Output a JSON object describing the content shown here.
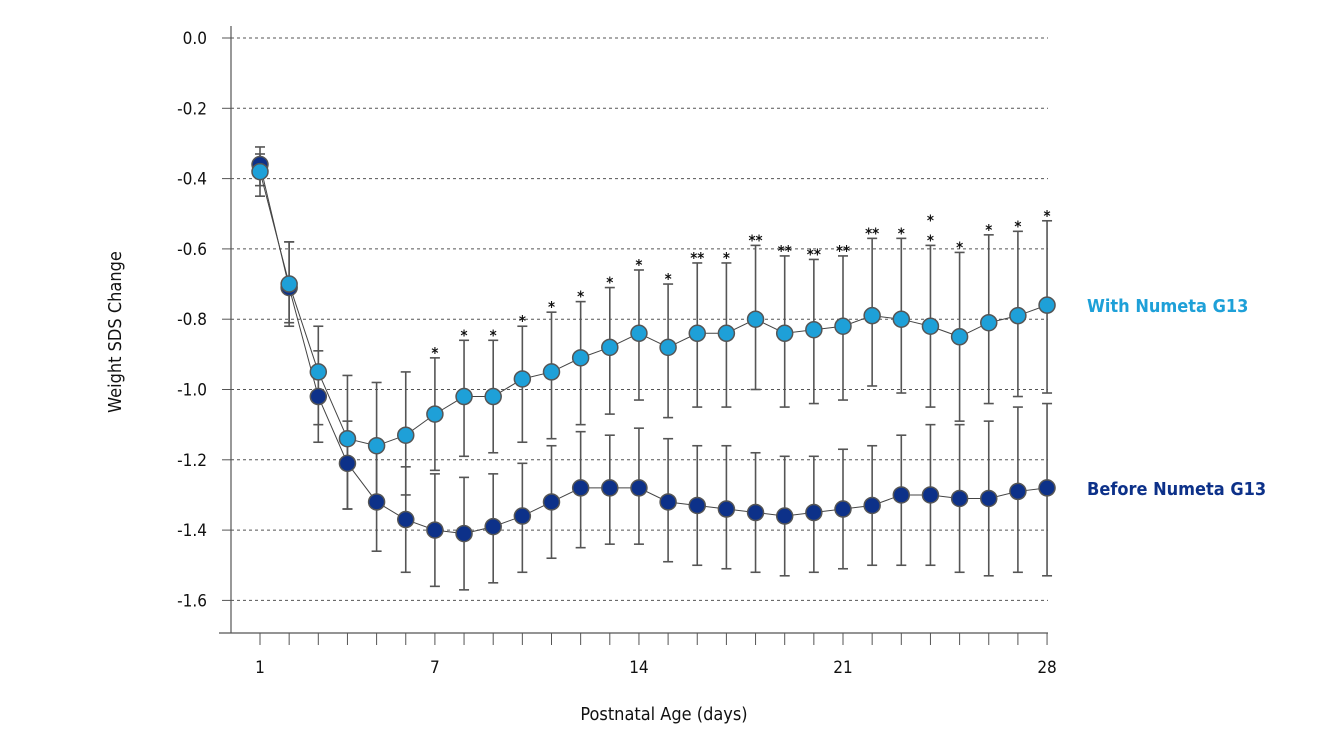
{
  "chart_data": {
    "type": "line",
    "xlabel": "Postnatal Age (days)",
    "ylabel": "Weight SDS Change",
    "x_ticks": [
      "1",
      "7",
      "14",
      "21",
      "28"
    ],
    "y_ticks": [
      "0.0",
      "-0.2",
      "-0.4",
      "-0.6",
      "-0.8",
      "-1.0",
      "-1.2",
      "-1.4",
      "-1.6"
    ],
    "ylim": [
      -1.6,
      0.0
    ],
    "xlim": [
      1,
      28
    ],
    "grid": "horizontal dashed",
    "x": [
      1,
      2,
      3,
      4,
      5,
      6,
      7,
      8,
      9,
      10,
      11,
      12,
      13,
      14,
      15,
      16,
      17,
      18,
      19,
      20,
      21,
      22,
      23,
      24,
      25,
      26,
      27,
      28
    ],
    "series": [
      {
        "name": "Before Numeta G13",
        "color": "#0d3189",
        "values": [
          -0.36,
          -0.71,
          -1.02,
          -1.21,
          -1.32,
          -1.37,
          -1.4,
          -1.41,
          -1.39,
          -1.36,
          -1.32,
          -1.28,
          -1.28,
          -1.28,
          -1.32,
          -1.33,
          -1.34,
          -1.35,
          -1.36,
          -1.35,
          -1.34,
          -1.33,
          -1.3,
          -1.3,
          -1.31,
          -1.31,
          -1.29,
          -1.28
        ],
        "err_high": [
          -0.31,
          -0.58,
          -0.89,
          -1.09,
          -1.16,
          -1.22,
          -1.24,
          -1.25,
          -1.24,
          -1.21,
          -1.16,
          -1.12,
          -1.13,
          -1.11,
          -1.14,
          -1.16,
          -1.16,
          -1.18,
          -1.19,
          -1.19,
          -1.17,
          -1.16,
          -1.13,
          -1.1,
          -1.1,
          -1.09,
          -1.05,
          -1.04
        ],
        "err_low": [
          -0.42,
          -0.81,
          -1.15,
          -1.34,
          -1.46,
          -1.52,
          -1.56,
          -1.57,
          -1.55,
          -1.52,
          -1.48,
          -1.45,
          -1.44,
          -1.44,
          -1.49,
          -1.5,
          -1.51,
          -1.52,
          -1.53,
          -1.52,
          -1.51,
          -1.5,
          -1.5,
          -1.5,
          -1.52,
          -1.53,
          -1.52,
          -1.53
        ]
      },
      {
        "name": "With Numeta G13",
        "color": "#1ea0d8",
        "values": [
          -0.38,
          -0.7,
          -0.95,
          -1.14,
          -1.16,
          -1.13,
          -1.07,
          -1.02,
          -1.02,
          -0.97,
          -0.95,
          -0.91,
          -0.88,
          -0.84,
          -0.88,
          -0.84,
          -0.84,
          -0.8,
          -0.84,
          -0.83,
          -0.82,
          -0.79,
          -0.8,
          -0.82,
          -0.85,
          -0.81,
          -0.79,
          -0.76
        ],
        "err_high": [
          -0.33,
          -0.58,
          -0.82,
          -0.96,
          -0.98,
          -0.95,
          -0.91,
          -0.86,
          -0.86,
          -0.82,
          -0.78,
          -0.75,
          -0.71,
          -0.66,
          -0.7,
          -0.64,
          -0.64,
          -0.59,
          -0.62,
          -0.63,
          -0.62,
          -0.57,
          -0.57,
          -0.59,
          -0.61,
          -0.56,
          -0.55,
          -0.52
        ],
        "err_low": [
          -0.45,
          -0.82,
          -1.1,
          -1.34,
          -1.32,
          -1.3,
          -1.23,
          -1.19,
          -1.18,
          -1.15,
          -1.14,
          -1.1,
          -1.07,
          -1.03,
          -1.08,
          -1.05,
          -1.05,
          -1.0,
          -1.05,
          -1.04,
          -1.03,
          -0.99,
          -1.01,
          -1.05,
          -1.09,
          -1.04,
          -1.02,
          -1.01
        ]
      }
    ],
    "significance": [
      {
        "day": 7,
        "label": "*"
      },
      {
        "day": 8,
        "label": "*"
      },
      {
        "day": 9,
        "label": "*"
      },
      {
        "day": 10,
        "label": "*"
      },
      {
        "day": 11,
        "label": "*"
      },
      {
        "day": 12,
        "label": "*"
      },
      {
        "day": 13,
        "label": "*"
      },
      {
        "day": 14,
        "label": "*"
      },
      {
        "day": 15,
        "label": "*"
      },
      {
        "day": 16,
        "label": "**"
      },
      {
        "day": 17,
        "label": "*"
      },
      {
        "day": 18,
        "label": "**"
      },
      {
        "day": 19,
        "label": "**"
      },
      {
        "day": 20,
        "label": "**"
      },
      {
        "day": 21,
        "label": "**"
      },
      {
        "day": 22,
        "label": "**"
      },
      {
        "day": 23,
        "label": "*"
      },
      {
        "day": 24,
        "label": "*\n*"
      },
      {
        "day": 25,
        "label": "*"
      },
      {
        "day": 26,
        "label": "*"
      },
      {
        "day": 27,
        "label": "*"
      },
      {
        "day": 28,
        "label": "*"
      }
    ]
  },
  "legend": {
    "with_label": "With Numeta G13",
    "before_label": "Before Numeta G13"
  }
}
